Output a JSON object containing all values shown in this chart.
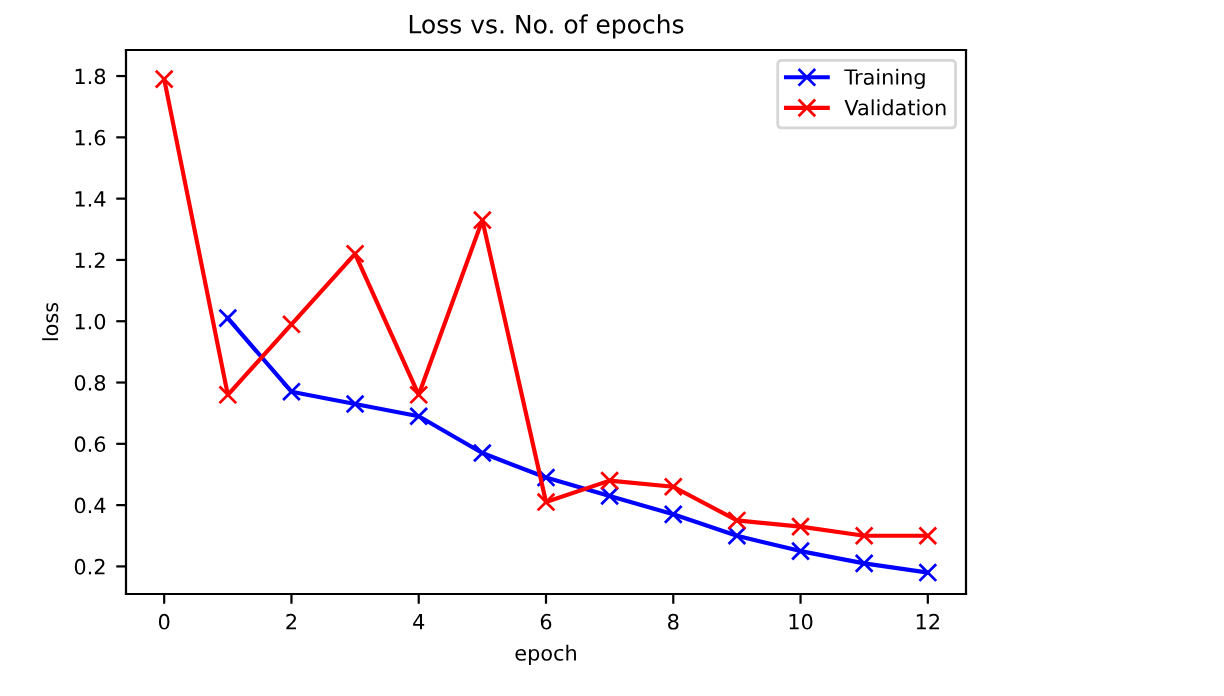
{
  "chart_data": {
    "type": "line",
    "title": "Loss vs. No. of epochs",
    "xlabel": "epoch",
    "ylabel": "loss",
    "x": [
      0,
      1,
      2,
      3,
      4,
      5,
      6,
      7,
      8,
      9,
      10,
      11,
      12
    ],
    "series": [
      {
        "name": "Training",
        "color": "#0000ff",
        "values": [
          null,
          1.01,
          0.77,
          0.73,
          0.69,
          0.57,
          0.49,
          0.43,
          0.37,
          0.3,
          0.25,
          0.21,
          0.18
        ]
      },
      {
        "name": "Validation",
        "color": "#ff0000",
        "values": [
          1.79,
          0.76,
          0.99,
          1.22,
          0.76,
          1.33,
          0.41,
          0.48,
          0.46,
          0.35,
          0.33,
          0.3,
          0.3
        ]
      }
    ],
    "xlim": [
      -0.6,
      12.6
    ],
    "ylim": [
      0.11,
      1.885
    ],
    "xticks": [
      0,
      2,
      4,
      6,
      8,
      10,
      12
    ],
    "yticks": [
      0.2,
      0.4,
      0.6,
      0.8,
      {
        "value": 1,
        "label": "1.0"
      },
      1.2,
      1.4,
      1.6,
      1.8
    ],
    "marker": "cross",
    "line_style": "solid",
    "legend": "top right",
    "grid": false
  }
}
